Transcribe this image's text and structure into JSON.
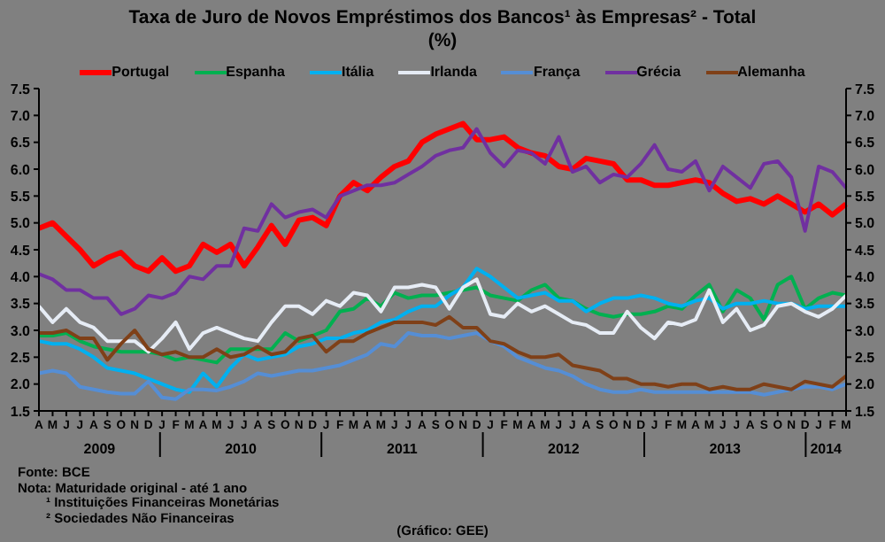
{
  "chart_data": {
    "type": "line",
    "title": "Taxa de Juro de Novos Empréstimos dos Bancos¹ às Empresas² - Total",
    "subtitle": "(%)",
    "categories": [
      "A",
      "M",
      "J",
      "J",
      "A",
      "S",
      "O",
      "N",
      "D",
      "J",
      "F",
      "M",
      "A",
      "M",
      "J",
      "J",
      "A",
      "S",
      "O",
      "N",
      "D",
      "J",
      "F",
      "M",
      "A",
      "M",
      "J",
      "J",
      "A",
      "S",
      "O",
      "N",
      "D",
      "J",
      "F",
      "M",
      "A",
      "M",
      "J",
      "J",
      "A",
      "S",
      "O",
      "N",
      "D",
      "J",
      "F",
      "M",
      "A",
      "M",
      "J",
      "J",
      "A",
      "S",
      "O",
      "N",
      "D",
      "J",
      "F",
      "M"
    ],
    "ylim": [
      1.5,
      7.5
    ],
    "yticks": [
      1.5,
      {
        "value": 2,
        "label": "2.0"
      },
      2.5,
      {
        "value": 3,
        "label": "3.0"
      },
      3.5,
      {
        "value": 4,
        "label": "4.0"
      },
      4.5,
      {
        "value": 5,
        "label": "5.0"
      },
      5.5,
      {
        "value": 6,
        "label": "6.0"
      },
      6.5,
      {
        "value": 7,
        "label": "7.0"
      },
      7.5
    ],
    "y2lim": [
      1.5,
      7.5
    ],
    "y2ticks": [
      1.5,
      {
        "value": 2,
        "label": "2.0"
      },
      2.5,
      {
        "value": 3,
        "label": "3.0"
      },
      3.5,
      {
        "value": 4,
        "label": "4.0"
      },
      4.5,
      {
        "value": 5,
        "label": "5.0"
      },
      5.5,
      {
        "value": 6,
        "label": "6.0"
      },
      6.5,
      {
        "value": 7,
        "label": "7.0"
      },
      7.5
    ],
    "legend": "top",
    "marker": "none",
    "line_style": "solid",
    "series": [
      {
        "name": "Portugal",
        "color": "#ff0000",
        "values": [
          4.9,
          5.0,
          4.75,
          4.5,
          4.2,
          4.35,
          4.45,
          4.2,
          4.1,
          4.35,
          4.1,
          4.2,
          4.6,
          4.45,
          4.6,
          4.2,
          4.55,
          4.95,
          4.6,
          5.05,
          5.1,
          4.95,
          5.5,
          5.75,
          5.6,
          5.85,
          6.05,
          6.15,
          6.5,
          6.65,
          6.75,
          6.85,
          6.55,
          6.55,
          6.6,
          6.4,
          6.3,
          6.25,
          6.05,
          6.0,
          6.2,
          6.15,
          6.1,
          5.8,
          5.8,
          5.7,
          5.7,
          5.75,
          5.8,
          5.75,
          5.55,
          5.4,
          5.45,
          5.35,
          5.5,
          5.35,
          5.2,
          5.35,
          5.15,
          5.35
        ]
      },
      {
        "name": "Espanha",
        "color": "#00b050",
        "values": [
          2.9,
          2.9,
          2.95,
          2.8,
          2.7,
          2.65,
          2.6,
          2.6,
          2.6,
          2.55,
          2.45,
          2.5,
          2.45,
          2.4,
          2.65,
          2.65,
          2.65,
          2.65,
          2.95,
          2.8,
          2.9,
          3.0,
          3.35,
          3.4,
          3.6,
          3.45,
          3.7,
          3.6,
          3.65,
          3.65,
          3.7,
          3.75,
          3.8,
          3.65,
          3.6,
          3.55,
          3.75,
          3.85,
          3.6,
          3.55,
          3.4,
          3.3,
          3.25,
          3.3,
          3.3,
          3.35,
          3.45,
          3.4,
          3.65,
          3.85,
          3.35,
          3.75,
          3.6,
          3.2,
          3.85,
          4.0,
          3.4,
          3.6,
          3.7,
          3.65
        ]
      },
      {
        "name": "Itália",
        "color": "#00b0f0",
        "values": [
          2.8,
          2.75,
          2.75,
          2.65,
          2.5,
          2.3,
          2.25,
          2.2,
          2.1,
          2.0,
          1.9,
          1.85,
          2.2,
          1.95,
          2.3,
          2.55,
          2.45,
          2.5,
          2.55,
          2.7,
          2.75,
          2.85,
          2.85,
          2.95,
          3.0,
          3.15,
          3.2,
          3.35,
          3.45,
          3.45,
          3.65,
          3.8,
          4.15,
          4.0,
          3.8,
          3.6,
          3.65,
          3.7,
          3.55,
          3.55,
          3.35,
          3.5,
          3.6,
          3.6,
          3.65,
          3.6,
          3.5,
          3.45,
          3.55,
          3.6,
          3.4,
          3.5,
          3.5,
          3.55,
          3.5,
          3.5,
          3.4,
          3.45,
          3.45,
          3.45
        ]
      },
      {
        "name": "Irlanda",
        "color": "#e6ecf5",
        "values": [
          3.45,
          3.15,
          3.4,
          3.15,
          3.05,
          2.8,
          2.8,
          2.8,
          2.6,
          2.85,
          3.15,
          2.65,
          2.95,
          3.05,
          2.95,
          2.85,
          2.8,
          3.15,
          3.45,
          3.45,
          3.3,
          3.55,
          3.45,
          3.7,
          3.65,
          3.35,
          3.8,
          3.8,
          3.85,
          3.8,
          3.4,
          3.8,
          3.95,
          3.3,
          3.25,
          3.5,
          3.35,
          3.45,
          3.3,
          3.15,
          3.1,
          2.95,
          2.95,
          3.35,
          3.05,
          2.85,
          3.15,
          3.1,
          3.2,
          3.75,
          3.15,
          3.4,
          3.0,
          3.1,
          3.45,
          3.5,
          3.35,
          3.25,
          3.4,
          3.65
        ]
      },
      {
        "name": "França",
        "color": "#558ed5",
        "values": [
          2.2,
          2.25,
          2.2,
          1.95,
          1.9,
          1.85,
          1.82,
          1.82,
          2.05,
          1.75,
          1.72,
          1.9,
          1.9,
          1.88,
          1.95,
          2.05,
          2.2,
          2.15,
          2.2,
          2.25,
          2.25,
          2.3,
          2.35,
          2.45,
          2.55,
          2.75,
          2.7,
          2.95,
          2.9,
          2.9,
          2.85,
          2.9,
          2.95,
          2.8,
          2.7,
          2.5,
          2.4,
          2.3,
          2.25,
          2.15,
          2.0,
          1.9,
          1.85,
          1.85,
          1.9,
          1.85,
          1.85,
          1.85,
          1.85,
          1.85,
          1.85,
          1.85,
          1.85,
          1.8,
          1.85,
          1.9,
          1.95,
          1.95,
          1.9,
          2.0
        ]
      },
      {
        "name": "Grécia",
        "color": "#7030a0",
        "values": [
          4.05,
          3.95,
          3.75,
          3.75,
          3.6,
          3.6,
          3.3,
          3.4,
          3.65,
          3.6,
          3.7,
          4.0,
          3.95,
          4.2,
          4.2,
          4.9,
          4.85,
          5.35,
          5.1,
          5.2,
          5.25,
          5.1,
          5.5,
          5.6,
          5.7,
          5.7,
          5.75,
          5.9,
          6.05,
          6.25,
          6.35,
          6.4,
          6.75,
          6.3,
          6.05,
          6.35,
          6.3,
          6.1,
          6.6,
          5.95,
          6.05,
          5.75,
          5.9,
          5.85,
          6.1,
          6.45,
          6.0,
          5.95,
          6.15,
          5.6,
          6.05,
          5.85,
          5.65,
          6.1,
          6.15,
          5.85,
          4.85,
          6.05,
          5.95,
          5.65
        ]
      },
      {
        "name": "Alemanha",
        "color": "#7f4018",
        "values": [
          2.95,
          2.95,
          3.0,
          2.85,
          2.85,
          2.45,
          2.75,
          3.0,
          2.65,
          2.55,
          2.6,
          2.5,
          2.5,
          2.65,
          2.5,
          2.55,
          2.7,
          2.55,
          2.6,
          2.85,
          2.9,
          2.6,
          2.8,
          2.8,
          2.95,
          3.05,
          3.15,
          3.15,
          3.15,
          3.1,
          3.25,
          3.05,
          3.05,
          2.8,
          2.75,
          2.6,
          2.5,
          2.5,
          2.55,
          2.35,
          2.3,
          2.25,
          2.1,
          2.1,
          2.0,
          2.0,
          1.95,
          2.0,
          2.0,
          1.9,
          1.95,
          1.9,
          1.9,
          2.0,
          1.95,
          1.9,
          2.05,
          2.0,
          1.95,
          2.15
        ]
      }
    ],
    "annotations": [
      "2009",
      "2010",
      "2011",
      "2012",
      "2013",
      "2014",
      "Fonte: BCE",
      "Nota: Maturidade original - até 1 ano",
      "¹ Instituições Financeiras Monetárias",
      "² Sociedades Não Financeiras",
      "(Gráfico: GEE)"
    ]
  }
}
